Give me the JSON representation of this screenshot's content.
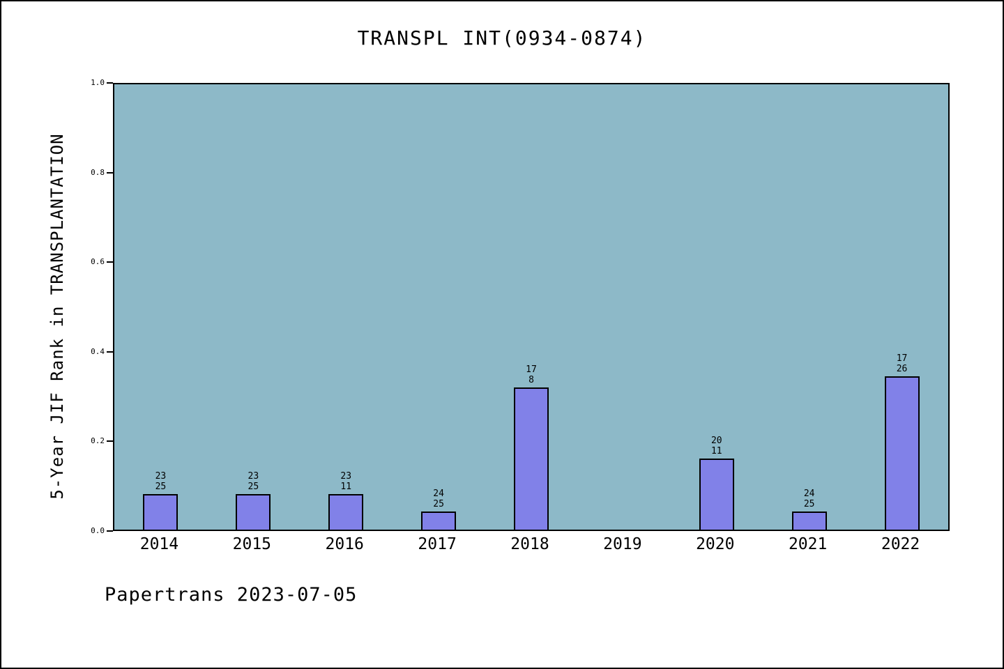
{
  "title": "TRANSPL INT(0934-0874)",
  "footer": "Papertrans 2023-07-05",
  "chart_data": {
    "type": "bar",
    "title": "TRANSPL INT(0934-0874)",
    "xlabel": "",
    "ylabel": "5-Year JIF Rank in TRANSPLANTATION",
    "categories": [
      "2014",
      "2015",
      "2016",
      "2017",
      "2018",
      "2019",
      "2020",
      "2021",
      "2022"
    ],
    "values": [
      0.08,
      0.08,
      0.08,
      0.04,
      0.32,
      0,
      0.16,
      0.04,
      0.345
    ],
    "bar_labels": [
      [
        "23",
        "25"
      ],
      [
        "23",
        "25"
      ],
      [
        "23",
        "11"
      ],
      [
        "24",
        "25"
      ],
      [
        "17",
        "8"
      ],
      [],
      [
        "20",
        "11"
      ],
      [
        "24",
        "25"
      ],
      [
        "17",
        "26"
      ]
    ],
    "ylim": [
      0.0,
      1.0
    ],
    "yticks": [
      "0.0",
      "0.2",
      "0.4",
      "0.6",
      "0.8",
      "1.0"
    ],
    "grid": false,
    "legend": "none",
    "colors": {
      "plot_bg": "#8db9c8",
      "bar_fill": "#8181e8",
      "bar_border": "#000000",
      "text": "#000000",
      "page_bg": "#ffffff"
    }
  }
}
